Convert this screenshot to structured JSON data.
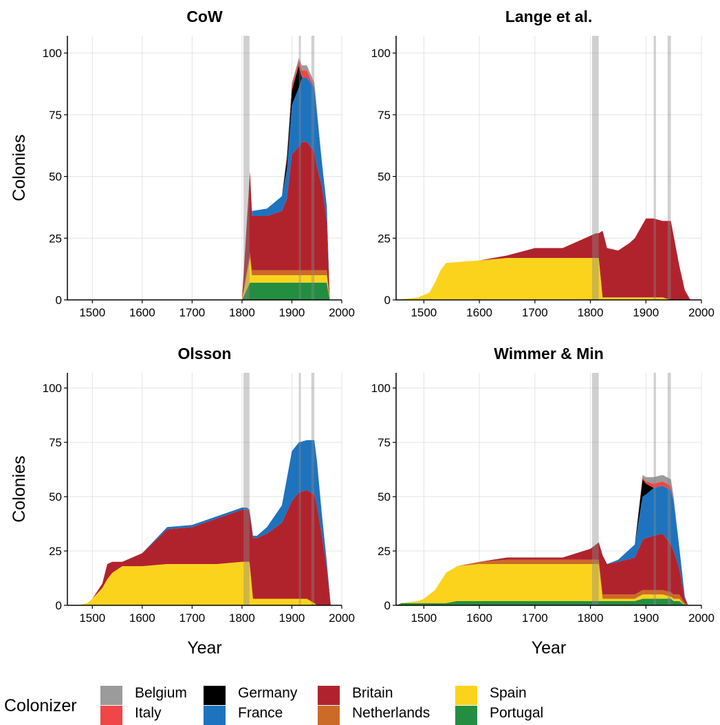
{
  "chart_data": [
    {
      "type": "area",
      "title": "CoW",
      "xlabel": "",
      "ylabel": "Colonies",
      "xlim": [
        1450,
        2000
      ],
      "ylim": [
        0,
        107
      ],
      "xticks": [
        "1500",
        "1600",
        "1700",
        "1800",
        "1900",
        "2000"
      ],
      "yticks": [
        "0",
        "25",
        "50",
        "75",
        "100"
      ],
      "grid": true,
      "x": [
        1450,
        1600,
        1700,
        1800,
        1816,
        1820,
        1850,
        1880,
        1890,
        1900,
        1914,
        1920,
        1930,
        1945,
        1950,
        1960,
        1970,
        1976
      ],
      "series": [
        {
          "name": "Portugal",
          "values": [
            0,
            0,
            0,
            0,
            7,
            7,
            7,
            7,
            7,
            7,
            7,
            7,
            7,
            7,
            7,
            7,
            7,
            0
          ]
        },
        {
          "name": "Spain",
          "values": [
            0,
            0,
            0,
            0,
            10,
            3,
            3,
            3,
            3,
            3,
            3,
            3,
            3,
            3,
            3,
            3,
            3,
            0
          ]
        },
        {
          "name": "Netherlands",
          "values": [
            0,
            0,
            0,
            0,
            2,
            2,
            2,
            2,
            2,
            2,
            2,
            2,
            2,
            2,
            2,
            2,
            2,
            0
          ]
        },
        {
          "name": "Britain",
          "values": [
            0,
            0,
            0,
            0,
            33,
            22,
            22,
            24,
            29,
            47,
            50,
            52,
            52,
            48,
            42,
            34,
            20,
            0
          ]
        },
        {
          "name": "France",
          "values": [
            0,
            0,
            0,
            0,
            0,
            2,
            3,
            6,
            12,
            20,
            24,
            26,
            26,
            26,
            22,
            10,
            6,
            0
          ]
        },
        {
          "name": "Germany",
          "values": [
            0,
            0,
            0,
            0,
            0,
            0,
            0,
            0,
            4,
            6,
            9,
            0,
            0,
            0,
            0,
            0,
            0,
            0
          ]
        },
        {
          "name": "Italy",
          "values": [
            0,
            0,
            0,
            0,
            0,
            0,
            0,
            0,
            1,
            2,
            2,
            3,
            3,
            0,
            0,
            0,
            0,
            0
          ]
        },
        {
          "name": "Belgium",
          "values": [
            0,
            0,
            0,
            0,
            0,
            0,
            0,
            0,
            1,
            1,
            1,
            2,
            2,
            2,
            2,
            0,
            0,
            0
          ]
        }
      ]
    },
    {
      "type": "area",
      "title": "Lange et al.",
      "xlabel": "",
      "ylabel": "",
      "xlim": [
        1450,
        2000
      ],
      "ylim": [
        0,
        107
      ],
      "xticks": [
        "1500",
        "1600",
        "1700",
        "1800",
        "1900",
        "2000"
      ],
      "yticks": [
        "0",
        "25",
        "50",
        "75",
        "100"
      ],
      "grid": true,
      "x": [
        1450,
        1490,
        1510,
        1520,
        1530,
        1540,
        1600,
        1650,
        1700,
        1750,
        1800,
        1810,
        1815,
        1822,
        1830,
        1850,
        1870,
        1880,
        1900,
        1914,
        1930,
        1945,
        1950,
        1960,
        1970,
        1980
      ],
      "series": [
        {
          "name": "Spain",
          "values": [
            0,
            1,
            3,
            7,
            12,
            15,
            16,
            17,
            17,
            17,
            17,
            17,
            17,
            1,
            1,
            1,
            1,
            1,
            1,
            1,
            1,
            0,
            0,
            0,
            0,
            0
          ]
        },
        {
          "name": "Britain",
          "values": [
            0,
            0,
            0,
            0,
            0,
            0,
            0,
            1,
            4,
            4,
            9,
            10,
            10,
            27,
            20,
            19,
            22,
            24,
            32,
            32,
            31,
            32,
            26,
            14,
            4,
            0
          ]
        }
      ]
    },
    {
      "type": "area",
      "title": "Olsson",
      "xlabel": "Year",
      "ylabel": "Colonies",
      "xlim": [
        1450,
        2000
      ],
      "ylim": [
        0,
        107
      ],
      "xticks": [
        "1500",
        "1600",
        "1700",
        "1800",
        "1900",
        "2000"
      ],
      "yticks": [
        "0",
        "25",
        "50",
        "75",
        "100"
      ],
      "grid": true,
      "x": [
        1450,
        1470,
        1490,
        1500,
        1520,
        1530,
        1540,
        1560,
        1600,
        1650,
        1700,
        1750,
        1800,
        1810,
        1815,
        1822,
        1830,
        1850,
        1880,
        1900,
        1914,
        1930,
        1945,
        1950,
        1960,
        1970,
        1978
      ],
      "series": [
        {
          "name": "Spain",
          "values": [
            0,
            0,
            1,
            3,
            8,
            12,
            15,
            18,
            18,
            19,
            19,
            19,
            20,
            20,
            20,
            3,
            3,
            3,
            3,
            3,
            3,
            3,
            1,
            0,
            0,
            0,
            0
          ]
        },
        {
          "name": "Britain",
          "values": [
            0,
            0,
            0,
            0,
            2,
            7,
            5,
            2,
            6,
            16,
            17,
            21,
            24,
            24,
            23,
            28,
            28,
            30,
            35,
            45,
            49,
            50,
            50,
            46,
            32,
            17,
            0
          ]
        },
        {
          "name": "France",
          "values": [
            0,
            0,
            0,
            0,
            0,
            0,
            0,
            0,
            0,
            1,
            1,
            1,
            1,
            1,
            1,
            1,
            1,
            3,
            8,
            23,
            23,
            23,
            25,
            21,
            10,
            3,
            0
          ]
        }
      ]
    },
    {
      "type": "area",
      "title": "Wimmer & Min",
      "xlabel": "Year",
      "ylabel": "",
      "xlim": [
        1450,
        2000
      ],
      "ylim": [
        0,
        107
      ],
      "xticks": [
        "1500",
        "1600",
        "1700",
        "1800",
        "1900",
        "2000"
      ],
      "yticks": [
        "0",
        "25",
        "50",
        "75",
        "100"
      ],
      "grid": true,
      "x": [
        1450,
        1460,
        1490,
        1500,
        1520,
        1530,
        1540,
        1560,
        1600,
        1650,
        1700,
        1750,
        1800,
        1810,
        1815,
        1822,
        1830,
        1850,
        1880,
        1894,
        1900,
        1914,
        1930,
        1945,
        1950,
        1960,
        1970,
        1976
      ],
      "series": [
        {
          "name": "Portugal",
          "values": [
            0,
            1,
            1,
            1,
            1,
            1,
            1,
            2,
            2,
            2,
            2,
            2,
            2,
            2,
            2,
            2,
            2,
            2,
            2,
            3,
            3,
            3,
            3,
            3,
            2,
            2,
            0,
            0
          ]
        },
        {
          "name": "Spain",
          "values": [
            0,
            0,
            1,
            2,
            6,
            10,
            14,
            16,
            17,
            17,
            17,
            17,
            17,
            17,
            17,
            1,
            1,
            1,
            1,
            2,
            2,
            2,
            2,
            1,
            1,
            1,
            0,
            0
          ]
        },
        {
          "name": "Netherlands",
          "values": [
            0,
            0,
            0,
            0,
            0,
            0,
            0,
            0,
            1,
            2,
            2,
            2,
            2,
            2,
            2,
            2,
            2,
            2,
            2,
            2,
            2,
            2,
            2,
            2,
            2,
            2,
            1,
            0
          ]
        },
        {
          "name": "Britain",
          "values": [
            0,
            0,
            0,
            0,
            0,
            0,
            0,
            0,
            0,
            1,
            1,
            1,
            5,
            7,
            8,
            18,
            14,
            15,
            17,
            23,
            24,
            25,
            26,
            22,
            20,
            12,
            2,
            0
          ]
        },
        {
          "name": "France",
          "values": [
            0,
            0,
            0,
            0,
            0,
            0,
            0,
            0,
            0,
            0,
            0,
            0,
            0,
            0,
            0,
            0,
            0,
            1,
            6,
            20,
            20,
            22,
            22,
            25,
            23,
            10,
            1,
            0
          ]
        },
        {
          "name": "Germany",
          "values": [
            0,
            0,
            0,
            0,
            0,
            0,
            0,
            0,
            0,
            0,
            0,
            0,
            0,
            0,
            0,
            0,
            0,
            0,
            0,
            8,
            5,
            0,
            0,
            0,
            0,
            0,
            0,
            0
          ]
        },
        {
          "name": "Italy",
          "values": [
            0,
            0,
            0,
            0,
            0,
            0,
            0,
            0,
            0,
            0,
            0,
            0,
            0,
            0,
            0,
            0,
            0,
            0,
            0,
            1,
            1,
            2,
            2,
            2,
            0,
            0,
            0,
            0
          ]
        },
        {
          "name": "Belgium",
          "values": [
            0,
            0,
            0,
            0,
            0,
            0,
            0,
            0,
            0,
            0,
            0,
            0,
            0,
            0,
            0,
            0,
            0,
            0,
            0,
            1,
            2,
            3,
            3,
            3,
            2,
            0,
            0,
            0
          ]
        }
      ]
    }
  ],
  "period_bands": [
    [
      1803,
      1815
    ],
    [
      1914,
      1918
    ],
    [
      1939,
      1945
    ]
  ],
  "legend": {
    "title": "Colonizer",
    "placement": "bottom",
    "items": [
      {
        "label": "Belgium",
        "color": "#9b9b9b"
      },
      {
        "label": "Italy",
        "color": "#ef4646"
      },
      {
        "label": "Germany",
        "color": "#000000"
      },
      {
        "label": "France",
        "color": "#1e73be"
      },
      {
        "label": "Britain",
        "color": "#b0232d"
      },
      {
        "label": "Netherlands",
        "color": "#cc6a27"
      },
      {
        "label": "Spain",
        "color": "#fbd31d"
      },
      {
        "label": "Portugal",
        "color": "#238e42"
      }
    ]
  }
}
